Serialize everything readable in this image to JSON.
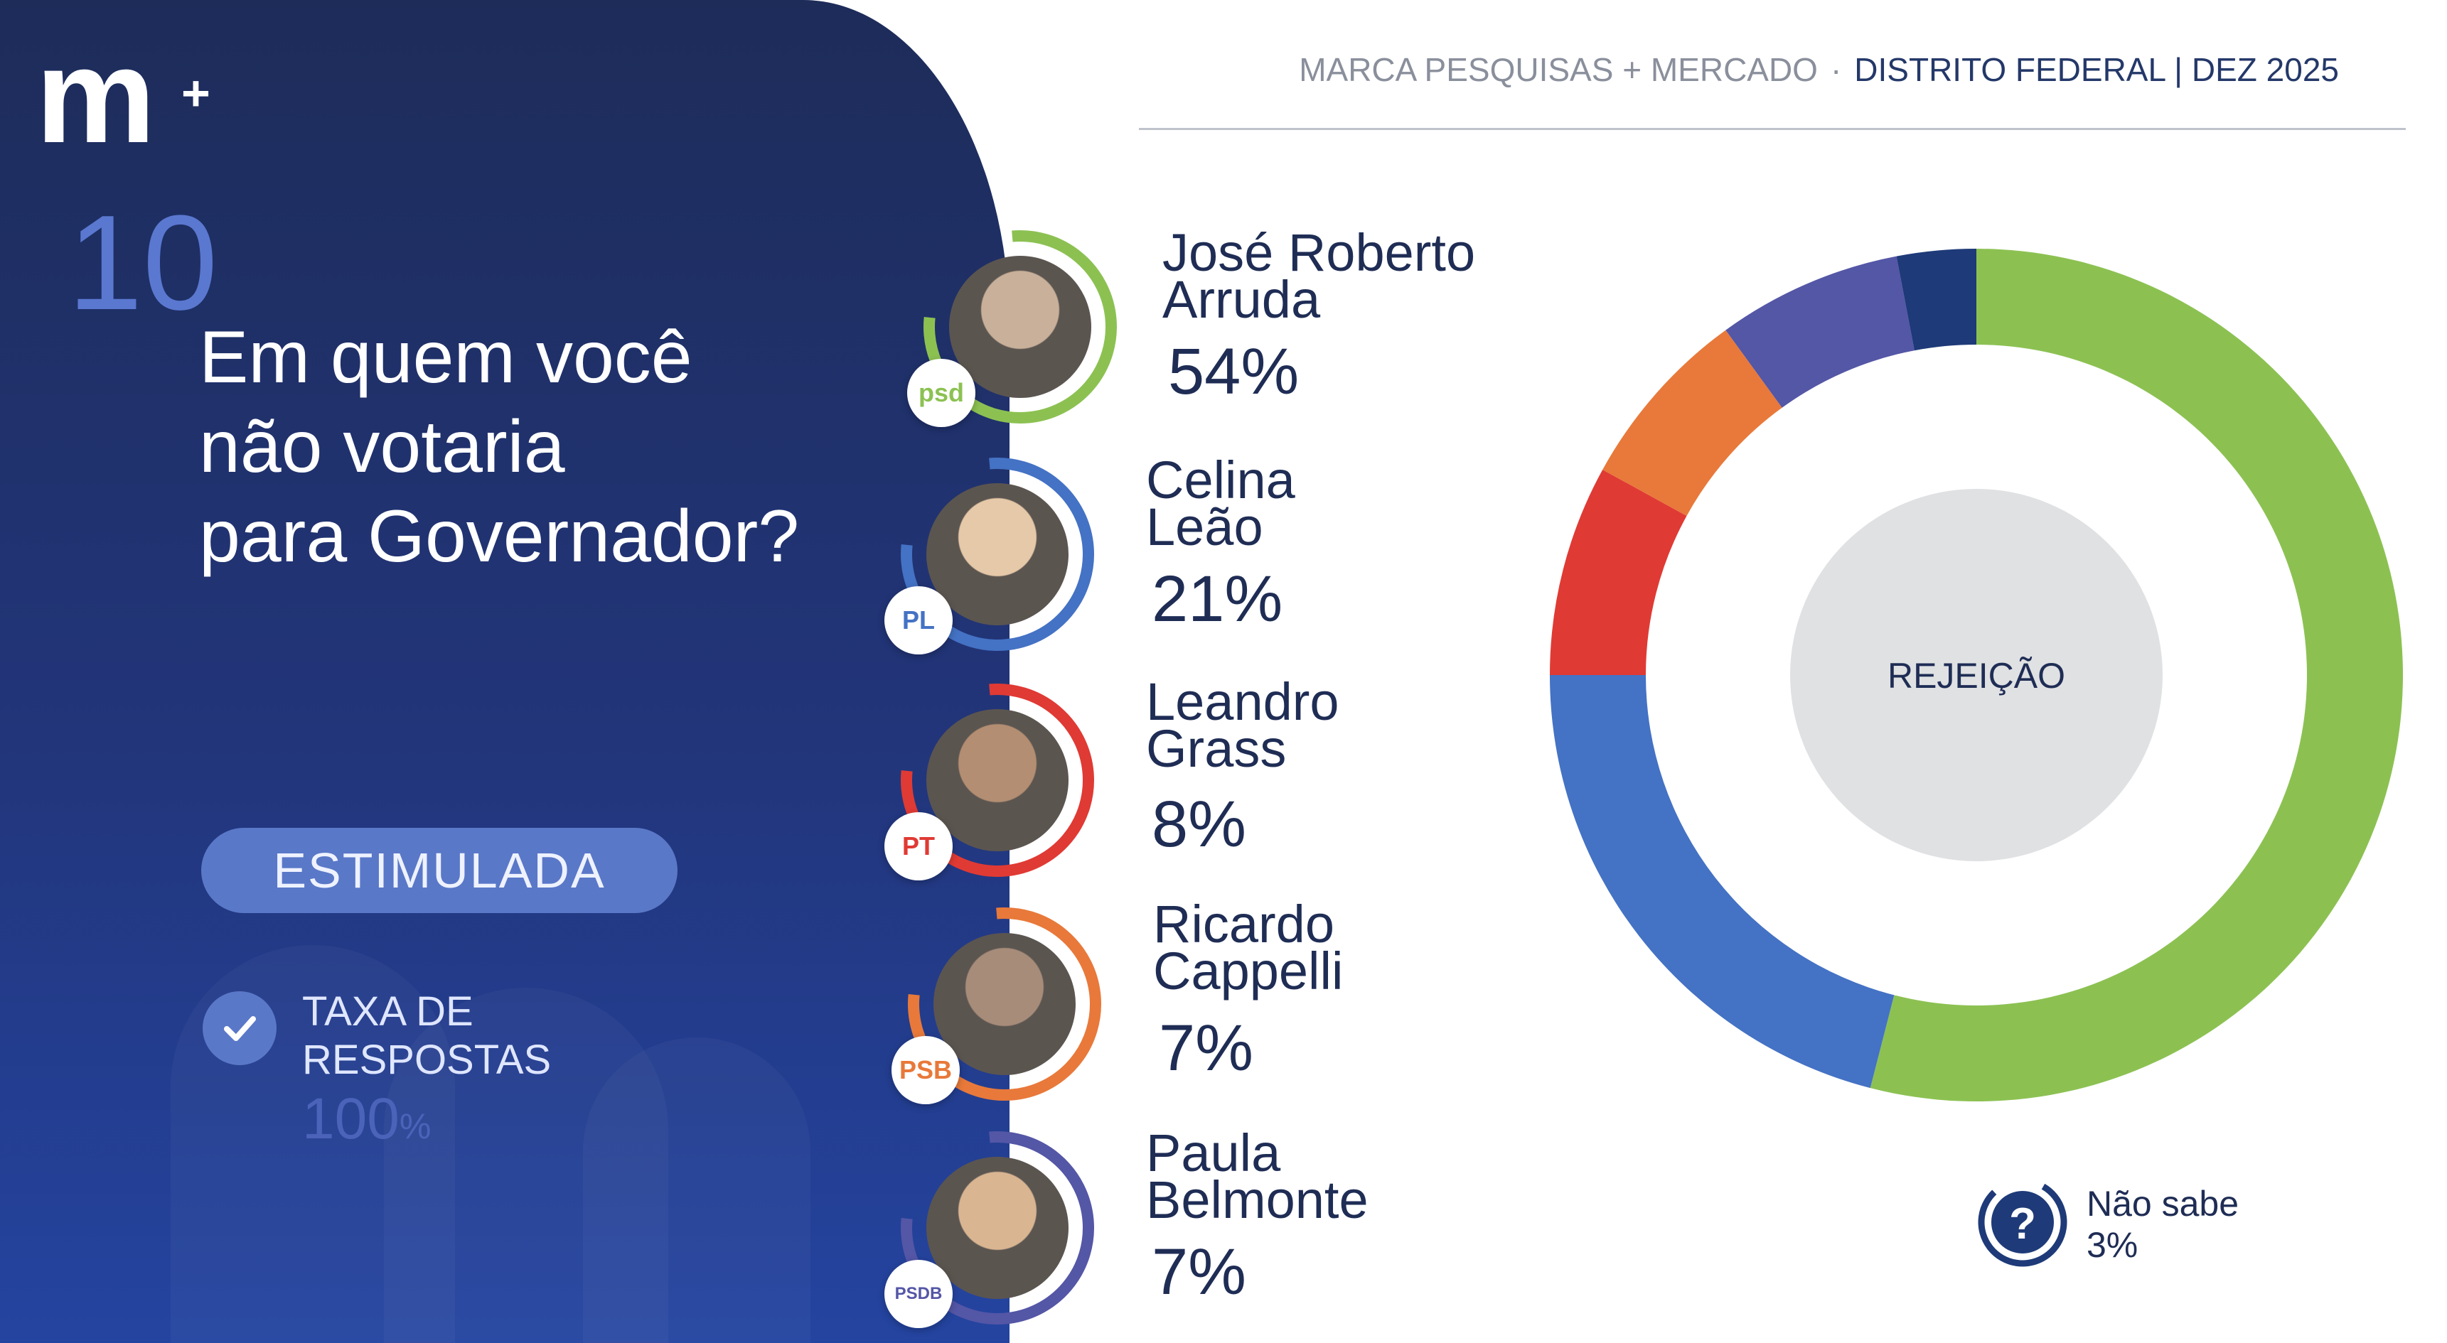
{
  "brand": {
    "logo_text": "m",
    "logo_plus": "+"
  },
  "header": {
    "org": "MARCA PESQUISAS + MERCADO",
    "separator": "·",
    "region": "DISTRITO FEDERAL |  DEZ 2025"
  },
  "question": {
    "number": "10",
    "line1": "Em quem você",
    "line2": "não votaria",
    "line3": "para Governador?"
  },
  "type_pill": "ESTIMULADA",
  "response_rate": {
    "label_line1": "TAXA DE",
    "label_line2": "RESPOSTAS",
    "value": "100",
    "unit": "%"
  },
  "candidates": [
    {
      "name_line1": "José Roberto",
      "name_line2": "Arruda",
      "pct": "54%",
      "party": "psd",
      "color": "#8cc152"
    },
    {
      "name_line1": "Celina",
      "name_line2": "Leão",
      "pct": "21%",
      "party": "PL",
      "color": "#4472c4"
    },
    {
      "name_line1": "Leandro",
      "name_line2": "Grass",
      "pct": "8%",
      "party": "PT",
      "color": "#e03a34"
    },
    {
      "name_line1": "Ricardo",
      "name_line2": "Cappelli",
      "pct": "7%",
      "party": "PSB",
      "color": "#e8793a"
    },
    {
      "name_line1": "Paula",
      "name_line2": "Belmonte",
      "pct": "7%",
      "party": "PSDB",
      "color": "#5456a6"
    }
  ],
  "chart_data": {
    "type": "pie",
    "title": "REJEIÇÃO",
    "categories": [
      "José Roberto Arruda",
      "Celina Leão",
      "Leandro Grass",
      "Ricardo Cappelli",
      "Paula Belmonte",
      "Não sabe"
    ],
    "values": [
      54,
      21,
      8,
      7,
      7,
      3
    ],
    "colors": [
      "#8cc152",
      "#4472c4",
      "#e03a34",
      "#e8793a",
      "#5456a6",
      "#1e3a78"
    ],
    "center_label": "REJEIÇÃO"
  },
  "dont_know": {
    "label": "Não sabe",
    "pct": "3%",
    "icon": "question-icon"
  }
}
